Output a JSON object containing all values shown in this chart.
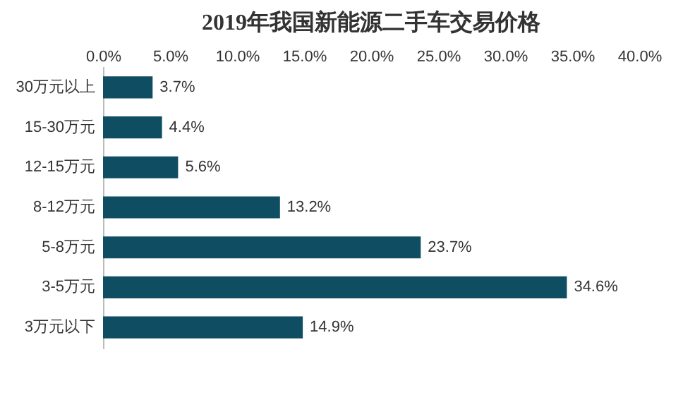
{
  "chart_data": {
    "type": "bar",
    "orientation": "horizontal",
    "title": "2019年我国新能源二手车交易价格",
    "categories": [
      "30万元以上",
      "15-30万元",
      "12-15万元",
      "8-12万元",
      "5-8万元",
      "3-5万元",
      "3万元以下"
    ],
    "values": [
      3.7,
      4.4,
      5.6,
      13.2,
      23.7,
      34.6,
      14.9
    ],
    "value_labels": [
      "3.7%",
      "4.4%",
      "5.6%",
      "13.2%",
      "23.7%",
      "34.6%",
      "14.9%"
    ],
    "color": "#0e4d62",
    "xlim": [
      0,
      40
    ],
    "xticks": [
      {
        "value": 0,
        "label": "0.0%"
      },
      {
        "value": 5,
        "label": "5.0%"
      },
      {
        "value": 10,
        "label": "10.0%"
      },
      {
        "value": 15,
        "label": "15.0%"
      },
      {
        "value": 20,
        "label": "20.0%"
      },
      {
        "value": 25,
        "label": "25.0%"
      },
      {
        "value": 30,
        "label": "30.0%"
      },
      {
        "value": 35,
        "label": "35.0%"
      },
      {
        "value": 40,
        "label": "40.0%"
      }
    ],
    "grid": false
  }
}
